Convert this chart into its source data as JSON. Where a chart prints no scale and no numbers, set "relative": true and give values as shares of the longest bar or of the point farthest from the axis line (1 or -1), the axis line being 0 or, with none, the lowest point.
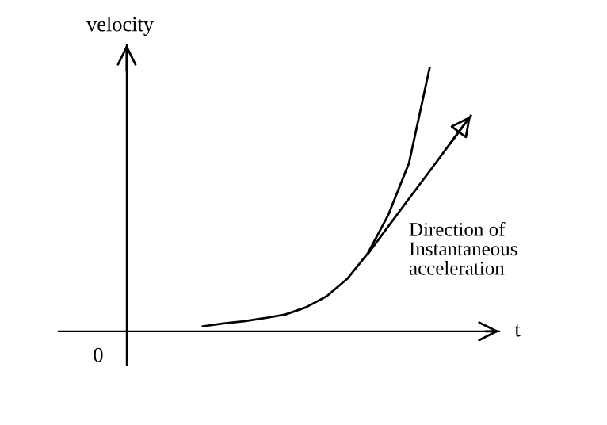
{
  "chart_data": {
    "type": "line",
    "relative": true,
    "xlabel": "t",
    "ylabel": "velocity",
    "categories": [
      null,
      null,
      null,
      null,
      null,
      null,
      null,
      null,
      null,
      null,
      null,
      null,
      null,
      null
    ],
    "series": [
      {
        "color": "#000000",
        "values": [
          0.019,
          0.03,
          0.038,
          0.05,
          0.064,
          0.091,
          0.133,
          0.199,
          0.296,
          0.443,
          0.639,
          1.0,
          null,
          null
        ]
      },
      {
        "color": "#000000",
        "values": [
          null,
          null,
          null,
          null,
          null,
          null,
          null,
          null,
          0.293,
          0.399,
          0.504,
          0.608,
          0.714,
          0.819
        ]
      }
    ],
    "annotations": [
      "0",
      "Direction of\nInstantaneous\nacceleration"
    ],
    "marker": "none",
    "line_style": "solid",
    "legend": false
  }
}
